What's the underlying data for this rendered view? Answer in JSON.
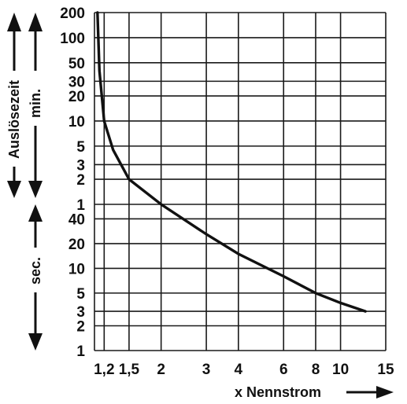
{
  "chart_data": {
    "type": "line",
    "title": "",
    "ylabel": "Auslösezeit",
    "xlabel": "x Nennstrom",
    "y_unit_minutes": "min.",
    "y_unit_seconds": "sec.",
    "x_scale": "log",
    "y_scale": "log",
    "xlim": [
      1.1,
      15
    ],
    "grid": true,
    "legend": "none",
    "x_ticks": [
      {
        "value": 1.2,
        "label": "1,2"
      },
      {
        "value": 1.5,
        "label": "1,5"
      },
      {
        "value": 2,
        "label": "2"
      },
      {
        "value": 3,
        "label": "3"
      },
      {
        "value": 4,
        "label": "4"
      },
      {
        "value": 6,
        "label": "6"
      },
      {
        "value": 8,
        "label": "8"
      },
      {
        "value": 10,
        "label": "10"
      },
      {
        "value": 15,
        "label": "15"
      }
    ],
    "y_ticks_minutes": [
      {
        "value": 200,
        "label": "200"
      },
      {
        "value": 100,
        "label": "100"
      },
      {
        "value": 50,
        "label": "50"
      },
      {
        "value": 30,
        "label": "30"
      },
      {
        "value": 20,
        "label": "20"
      },
      {
        "value": 10,
        "label": "10"
      },
      {
        "value": 5,
        "label": "5"
      },
      {
        "value": 3,
        "label": "3"
      },
      {
        "value": 2,
        "label": "2"
      },
      {
        "value": 1,
        "label": "1"
      }
    ],
    "y_ticks_seconds": [
      {
        "value": 40,
        "label": "40"
      },
      {
        "value": 20,
        "label": "20"
      },
      {
        "value": 10,
        "label": "10"
      },
      {
        "value": 5,
        "label": "5"
      },
      {
        "value": 3,
        "label": "3"
      },
      {
        "value": 2,
        "label": "2"
      },
      {
        "value": 1,
        "label": "1"
      }
    ],
    "series": [
      {
        "x": [
          1.13,
          1.15,
          1.2,
          1.3,
          1.5,
          2,
          3,
          4,
          6,
          8,
          10,
          12.5
        ],
        "y_seconds": [
          12000,
          2400,
          600,
          270,
          120,
          60,
          26,
          15,
          8,
          5,
          3.8,
          3
        ]
      }
    ],
    "colors": {
      "line": "#111111",
      "grid": "#1a1a1a",
      "background": "#ffffff"
    }
  }
}
